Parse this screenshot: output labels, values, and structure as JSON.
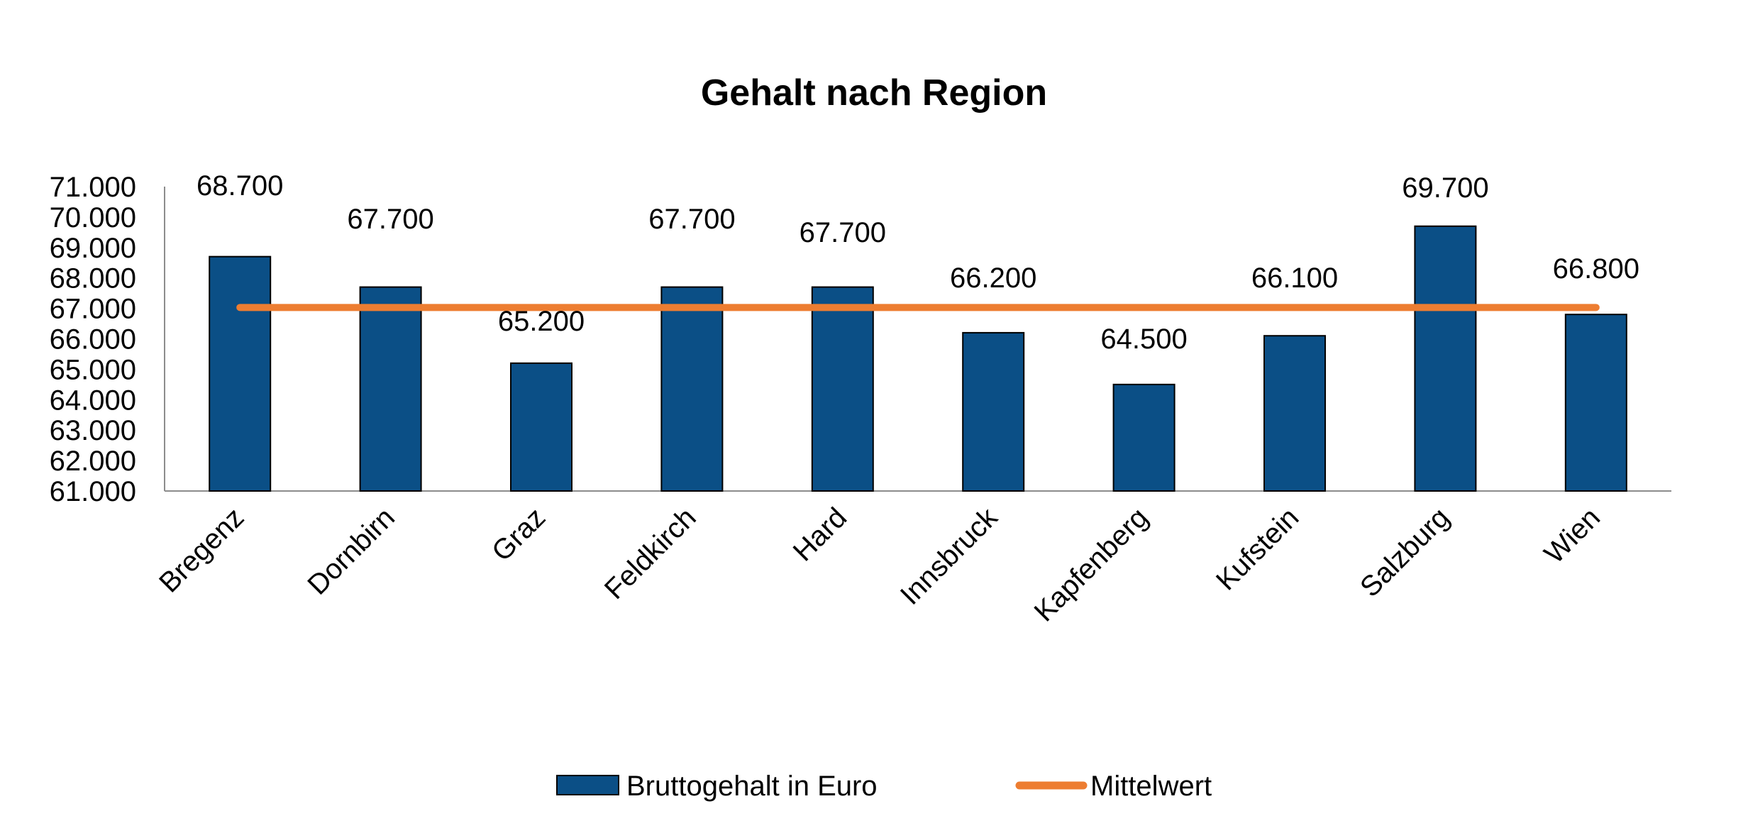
{
  "chart_data": {
    "type": "bar",
    "title": "Gehalt nach Region",
    "xlabel": "",
    "ylabel": "",
    "ylim": [
      61000,
      71000
    ],
    "ytick_step": 1000,
    "categories": [
      "Bregenz",
      "Dornbirn",
      "Graz",
      "Feldkirch",
      "Hard",
      "Innsbruck",
      "Kapfenberg",
      "Kufstein",
      "Salzburg",
      "Wien"
    ],
    "series": [
      {
        "name": "Bruttogehalt in Euro",
        "kind": "bar",
        "color": "#0b4f86",
        "values": [
          68700,
          67700,
          65200,
          67700,
          67700,
          66200,
          64500,
          66100,
          69700,
          66800
        ]
      },
      {
        "name": "Mittelwert",
        "kind": "line",
        "color": "#ed7d31",
        "values": [
          67030,
          67030,
          67030,
          67030,
          67030,
          67030,
          67030,
          67030,
          67030,
          67030
        ]
      }
    ],
    "data_labels": [
      "68.700",
      "67.700",
      "65.200",
      "67.700",
      "67.700",
      "66.200",
      "64.500",
      "66.100",
      "69.700",
      "66.800"
    ],
    "y_tick_labels": [
      "61.000",
      "62.000",
      "63.000",
      "64.000",
      "65.000",
      "66.000",
      "67.000",
      "68.000",
      "69.000",
      "70.000",
      "71.000"
    ],
    "legend_position": "bottom",
    "grid": false
  }
}
